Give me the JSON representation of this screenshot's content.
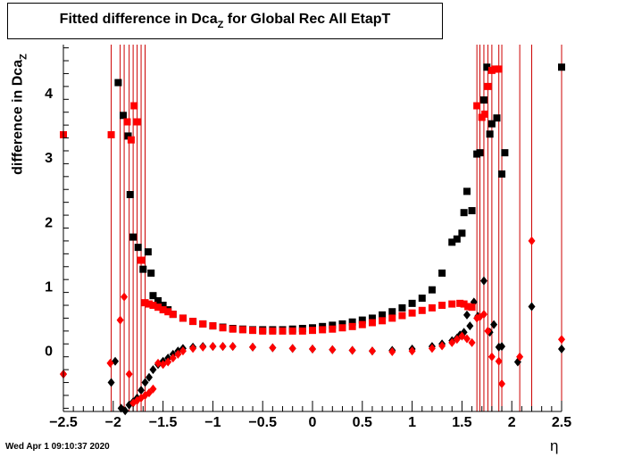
{
  "title": {
    "main": "Fitted difference in Dca",
    "sub": "Z",
    "rest": "  for Global Rec All EtapT"
  },
  "ylabel": {
    "main": "difference in Dca",
    "sub": "Z"
  },
  "xlabel": "η",
  "datestamp": "Wed Apr  1 09:10:37 2020",
  "colors": {
    "black_series": "#000000",
    "red_series": "#ff0000",
    "error_bar": "#cc0000"
  },
  "chart_data": {
    "type": "scatter",
    "xlim": [
      -2.5,
      2.5
    ],
    "ylim": [
      -0.95,
      4.75
    ],
    "xticks": [
      -2.5,
      -2,
      -1.5,
      -1,
      -0.5,
      0,
      0.5,
      1,
      1.5,
      2,
      2.5
    ],
    "xtick_labels": [
      "−2.5",
      "−2",
      "−1.5",
      "−1",
      "−0.5",
      "0",
      "0.5",
      "1",
      "1.5",
      "2",
      "2.5"
    ],
    "yticks": [
      0,
      1,
      2,
      3,
      4
    ],
    "ytick_labels": [
      "0",
      "1",
      "2",
      "3",
      "4"
    ],
    "grid": false,
    "series": [
      {
        "marker": "square",
        "color": "#000000",
        "x": [
          -1.95,
          -1.9,
          -1.85,
          -1.83,
          -1.8,
          -1.75,
          -1.7,
          -1.65,
          -1.62,
          -1.6,
          -1.55,
          -1.5,
          -1.45,
          -1.4,
          -1.3,
          -1.2,
          -1.1,
          -1.0,
          -0.9,
          -0.8,
          -0.7,
          -0.6,
          -0.5,
          -0.4,
          -0.3,
          -0.2,
          -0.1,
          0.0,
          0.1,
          0.2,
          0.3,
          0.4,
          0.5,
          0.6,
          0.7,
          0.8,
          0.9,
          1.0,
          1.1,
          1.2,
          1.3,
          1.4,
          1.45,
          1.5,
          1.52,
          1.55,
          1.6,
          1.65,
          1.68,
          1.72,
          1.75,
          1.78,
          1.8,
          1.85,
          1.9,
          1.93,
          2.5
        ],
        "y": [
          4.16,
          3.65,
          3.33,
          2.42,
          1.76,
          1.6,
          1.26,
          1.53,
          1.2,
          0.85,
          0.77,
          0.7,
          0.63,
          0.56,
          0.5,
          0.45,
          0.41,
          0.38,
          0.36,
          0.34,
          0.33,
          0.32,
          0.32,
          0.32,
          0.32,
          0.33,
          0.34,
          0.35,
          0.37,
          0.39,
          0.41,
          0.44,
          0.47,
          0.5,
          0.55,
          0.6,
          0.66,
          0.73,
          0.81,
          0.94,
          1.2,
          1.68,
          1.73,
          1.82,
          2.14,
          2.47,
          2.17,
          3.05,
          3.07,
          3.89,
          4.4,
          3.36,
          3.52,
          3.61,
          2.74,
          3.07,
          4.4
        ]
      },
      {
        "marker": "diamond",
        "color": "#000000",
        "x": [
          -2.5,
          -2.02,
          -1.98,
          -1.92,
          -1.88,
          -1.84,
          -1.8,
          -1.76,
          -1.72,
          -1.68,
          -1.64,
          -1.6,
          -1.55,
          -1.5,
          -1.45,
          -1.4,
          -1.35,
          -1.3,
          -1.2,
          -1.1,
          -1.0,
          -0.9,
          -0.8,
          -0.6,
          -0.4,
          -0.2,
          0.0,
          0.2,
          0.4,
          0.6,
          0.8,
          1.0,
          1.2,
          1.3,
          1.4,
          1.45,
          1.48,
          1.5,
          1.52,
          1.55,
          1.58,
          1.62,
          1.66,
          1.72,
          1.78,
          1.82,
          1.87,
          1.9,
          2.06,
          2.2,
          2.5
        ],
        "y": [
          -0.37,
          -0.5,
          -0.17,
          -0.9,
          -0.94,
          -0.85,
          -0.8,
          -0.74,
          -0.62,
          -0.5,
          -0.42,
          -0.3,
          -0.22,
          -0.17,
          -0.12,
          -0.06,
          -0.01,
          0.03,
          0.05,
          0.06,
          0.06,
          0.06,
          0.06,
          0.05,
          0.04,
          0.03,
          0.02,
          0.01,
          0.0,
          -0.01,
          0.0,
          0.02,
          0.06,
          0.1,
          0.15,
          0.19,
          0.24,
          0.24,
          0.28,
          0.55,
          0.38,
          0.75,
          0.53,
          1.08,
          0.28,
          0.4,
          0.05,
          0.06,
          -0.18,
          0.68,
          0.02
        ]
      },
      {
        "marker": "square",
        "color": "#ff0000",
        "x": [
          -2.5,
          -2.02,
          -1.86,
          -1.82,
          -1.79,
          -1.76,
          -1.72,
          -1.68,
          -1.64,
          -1.6,
          -1.55,
          -1.5,
          -1.45,
          -1.4,
          -1.3,
          -1.2,
          -1.1,
          -1.0,
          -0.9,
          -0.8,
          -0.7,
          -0.6,
          -0.5,
          -0.4,
          -0.3,
          -0.2,
          -0.1,
          0.0,
          0.1,
          0.2,
          0.3,
          0.4,
          0.5,
          0.6,
          0.7,
          0.8,
          0.9,
          1.0,
          1.1,
          1.2,
          1.3,
          1.4,
          1.48,
          1.52,
          1.56,
          1.6,
          1.65,
          1.7,
          1.73,
          1.76,
          1.8,
          1.83,
          1.87
        ],
        "y": [
          3.35,
          3.35,
          3.55,
          3.27,
          3.8,
          3.55,
          1.4,
          0.74,
          0.72,
          0.7,
          0.67,
          0.63,
          0.6,
          0.56,
          0.5,
          0.45,
          0.41,
          0.38,
          0.35,
          0.33,
          0.32,
          0.31,
          0.3,
          0.3,
          0.3,
          0.3,
          0.3,
          0.31,
          0.32,
          0.33,
          0.35,
          0.37,
          0.4,
          0.43,
          0.46,
          0.5,
          0.54,
          0.58,
          0.62,
          0.66,
          0.7,
          0.72,
          0.73,
          0.72,
          0.68,
          0.67,
          3.8,
          3.62,
          3.67,
          4.1,
          4.35,
          4.37,
          4.37
        ]
      },
      {
        "marker": "diamond",
        "color": "#ff0000",
        "x": [
          -2.5,
          -2.03,
          -1.93,
          -1.89,
          -1.84,
          -1.8,
          -1.76,
          -1.72,
          -1.68,
          -1.64,
          -1.6,
          -1.55,
          -1.5,
          -1.45,
          -1.4,
          -1.35,
          -1.3,
          -1.2,
          -1.1,
          -1.0,
          -0.9,
          -0.8,
          -0.6,
          -0.4,
          -0.2,
          0.0,
          0.2,
          0.4,
          0.6,
          0.8,
          1.0,
          1.2,
          1.3,
          1.4,
          1.45,
          1.5,
          1.55,
          1.6,
          1.65,
          1.68,
          1.72,
          1.76,
          1.8,
          1.87,
          1.9,
          2.08,
          2.2,
          2.5
        ],
        "y": [
          -0.37,
          -0.2,
          0.47,
          0.83,
          -0.37,
          -0.82,
          -0.78,
          -0.74,
          -0.7,
          -0.66,
          -0.6,
          -0.2,
          -0.22,
          -0.18,
          -0.12,
          -0.06,
          -0.01,
          0.03,
          0.05,
          0.06,
          0.06,
          0.06,
          0.05,
          0.04,
          0.03,
          0.02,
          0.01,
          0.0,
          -0.01,
          -0.02,
          -0.01,
          0.03,
          0.07,
          0.12,
          0.17,
          0.22,
          0.18,
          0.12,
          0.5,
          0.52,
          0.56,
          0.3,
          -0.1,
          -0.17,
          -0.52,
          -0.1,
          1.7,
          0.17
        ]
      }
    ],
    "error_bars": [
      {
        "x": -2.5,
        "low": -0.95,
        "high": 4.75
      },
      {
        "x": -2.02,
        "low": -0.95,
        "high": 4.75
      },
      {
        "x": -1.93,
        "low": -0.95,
        "high": 4.75
      },
      {
        "x": -1.89,
        "low": -0.95,
        "high": 4.75
      },
      {
        "x": -1.84,
        "low": -0.95,
        "high": 4.75
      },
      {
        "x": -1.8,
        "low": -0.95,
        "high": 4.75
      },
      {
        "x": -1.76,
        "low": -0.95,
        "high": 4.75
      },
      {
        "x": -1.72,
        "low": -0.95,
        "high": 4.75
      },
      {
        "x": -1.68,
        "low": -0.95,
        "high": 4.75
      },
      {
        "x": 1.65,
        "low": -0.95,
        "high": 4.75
      },
      {
        "x": 1.68,
        "low": -0.95,
        "high": 4.75
      },
      {
        "x": 1.72,
        "low": -0.95,
        "high": 4.75
      },
      {
        "x": 1.76,
        "low": -0.95,
        "high": 4.75
      },
      {
        "x": 1.8,
        "low": -0.95,
        "high": 4.75
      },
      {
        "x": 1.87,
        "low": -0.95,
        "high": 4.75
      },
      {
        "x": 1.9,
        "low": -0.95,
        "high": 4.75
      },
      {
        "x": 2.08,
        "low": -0.95,
        "high": 4.75
      },
      {
        "x": 2.2,
        "low": -0.95,
        "high": 4.75
      },
      {
        "x": 2.5,
        "low": -0.95,
        "high": 4.75
      }
    ]
  }
}
